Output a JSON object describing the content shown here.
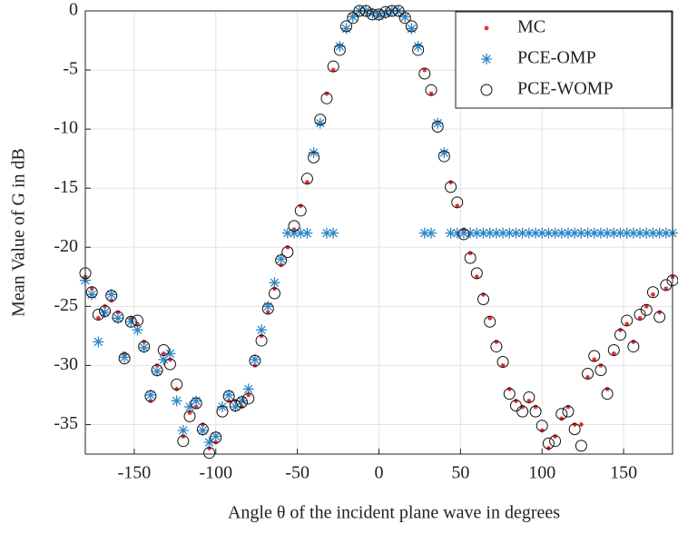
{
  "chart_data": {
    "type": "scatter",
    "xlabel": "Angle θ of the incident plane wave in degrees",
    "ylabel": "Mean Value of G in dB",
    "x": [
      -180,
      -176,
      -172,
      -168,
      -164,
      -160,
      -156,
      -152,
      -148,
      -144,
      -140,
      -136,
      -132,
      -128,
      -124,
      -120,
      -116,
      -112,
      -108,
      -104,
      -100,
      -96,
      -92,
      -88,
      -84,
      -80,
      -76,
      -72,
      -68,
      -64,
      -60,
      -56,
      -52,
      -48,
      -44,
      -40,
      -36,
      -32,
      -28,
      -24,
      -20,
      -16,
      -12,
      -8,
      -4,
      0,
      4,
      8,
      12,
      16,
      20,
      24,
      28,
      32,
      36,
      40,
      44,
      48,
      52,
      56,
      60,
      64,
      68,
      72,
      76,
      80,
      84,
      88,
      92,
      96,
      100,
      104,
      108,
      112,
      116,
      120,
      124,
      128,
      132,
      136,
      140,
      144,
      148,
      152,
      156,
      160,
      164,
      168,
      172,
      176,
      180
    ],
    "series": [
      {
        "name": "MC",
        "color": "#e4262b",
        "marker": "dot-star",
        "values": [
          -22.5,
          -23.5,
          -26,
          -25,
          -24.5,
          -25.5,
          -29,
          -26,
          -26.5,
          -28,
          -33,
          -30,
          -29,
          -29.5,
          -32,
          -36,
          -34,
          -33.5,
          -35,
          -37,
          -36.5,
          -33.5,
          -33,
          -33,
          -33.5,
          -32.5,
          -30,
          -27.5,
          -25.5,
          -23.5,
          -21.5,
          -20,
          -18.5,
          -16.5,
          -14.5,
          -12,
          -9.5,
          -7,
          -5,
          -3,
          -1.5,
          -0.5,
          0,
          0,
          -0.2,
          -0.4,
          -0.2,
          0,
          0,
          -0.5,
          -1.5,
          -3,
          -5,
          -7,
          -9.5,
          -12,
          -14.5,
          -16.5,
          -18.5,
          -20.5,
          -22.5,
          -24,
          -26,
          -28,
          -30,
          -32,
          -33,
          -33.5,
          -33,
          -33.5,
          -35.5,
          -37,
          -36,
          -34.5,
          -33.5,
          -35,
          -35,
          -31,
          -29.5,
          -30,
          -32,
          -29,
          -27,
          -26.5,
          -28,
          -26,
          -25,
          -24,
          -25.5,
          -23.5,
          -22.5
        ]
      },
      {
        "name": "PCE-OMP",
        "color": "#2f86c6",
        "marker": "asterisk",
        "values": [
          -22.8,
          -24,
          -28,
          -25.5,
          -24,
          -26,
          -29.3,
          -26.3,
          -27,
          -28.5,
          -32.5,
          -30.5,
          -29.5,
          -29,
          -33,
          -35.5,
          -33.5,
          -33,
          -35.5,
          -36.5,
          -36,
          -33.5,
          -32.5,
          -33.5,
          -33,
          -32,
          -29.5,
          -27,
          -25,
          -23,
          -21,
          -18.8,
          -18.8,
          -18.8,
          -18.8,
          -12,
          -9.5,
          -18.8,
          -18.8,
          -3,
          -1.5,
          -0.5,
          0,
          0,
          -0.2,
          -0.4,
          -0.2,
          0,
          0,
          -0.5,
          -1.5,
          -3,
          -18.8,
          -18.8,
          -9.5,
          -12,
          -18.8,
          -18.8,
          -18.8,
          -18.8,
          -18.8,
          -18.8,
          -18.8,
          -18.8,
          -18.8,
          -18.8,
          -18.8,
          -18.8,
          -18.8,
          -18.8,
          -18.8,
          -18.8,
          -18.8,
          -18.8,
          -18.8,
          -18.8,
          -18.8,
          -18.8,
          -18.8,
          -18.8,
          -18.8,
          -18.8,
          -18.8,
          -18.8,
          -18.8,
          -18.8,
          -18.8,
          -18.8,
          -18.8,
          -18.8,
          -18.8
        ]
      },
      {
        "name": "PCE-WOMP",
        "color": "#111111",
        "marker": "circle",
        "values": [
          -22.2,
          -23.8,
          -25.7,
          -25.4,
          -24.1,
          -25.9,
          -29.4,
          -26.3,
          -26.2,
          -28.4,
          -32.6,
          -30.4,
          -28.7,
          -29.9,
          -31.6,
          -36.4,
          -34.3,
          -33.2,
          -35.4,
          -37.4,
          -36.1,
          -33.9,
          -32.6,
          -33.4,
          -33.1,
          -32.8,
          -29.6,
          -27.9,
          -25.2,
          -23.9,
          -21.1,
          -20.4,
          -18.2,
          -16.9,
          -14.2,
          -12.4,
          -9.2,
          -7.4,
          -4.7,
          -3.3,
          -1.3,
          -0.6,
          0,
          0,
          -0.3,
          -0.3,
          -0.1,
          0,
          0,
          -0.6,
          -1.3,
          -3.3,
          -5.3,
          -6.7,
          -9.8,
          -12.3,
          -14.9,
          -16.2,
          -18.9,
          -20.9,
          -22.2,
          -24.4,
          -26.3,
          -28.4,
          -29.7,
          -32.4,
          -33.4,
          -33.9,
          -32.7,
          -33.9,
          -35.1,
          -36.6,
          -36.4,
          -34.1,
          -33.9,
          -35.4,
          -36.8,
          -30.7,
          -29.2,
          -30.4,
          -32.4,
          -28.7,
          -27.4,
          -26.2,
          -28.4,
          -25.7,
          -25.3,
          -23.8,
          -25.9,
          -23.2,
          -22.8
        ]
      }
    ],
    "xlim": [
      -180,
      180
    ],
    "ylim": [
      -37.5,
      0
    ],
    "xticks": [
      -150,
      -100,
      -50,
      0,
      50,
      100,
      150
    ],
    "yticks": [
      0,
      -5,
      -10,
      -15,
      -20,
      -25,
      -30,
      -35
    ],
    "grid": true,
    "legend": "upper right"
  }
}
